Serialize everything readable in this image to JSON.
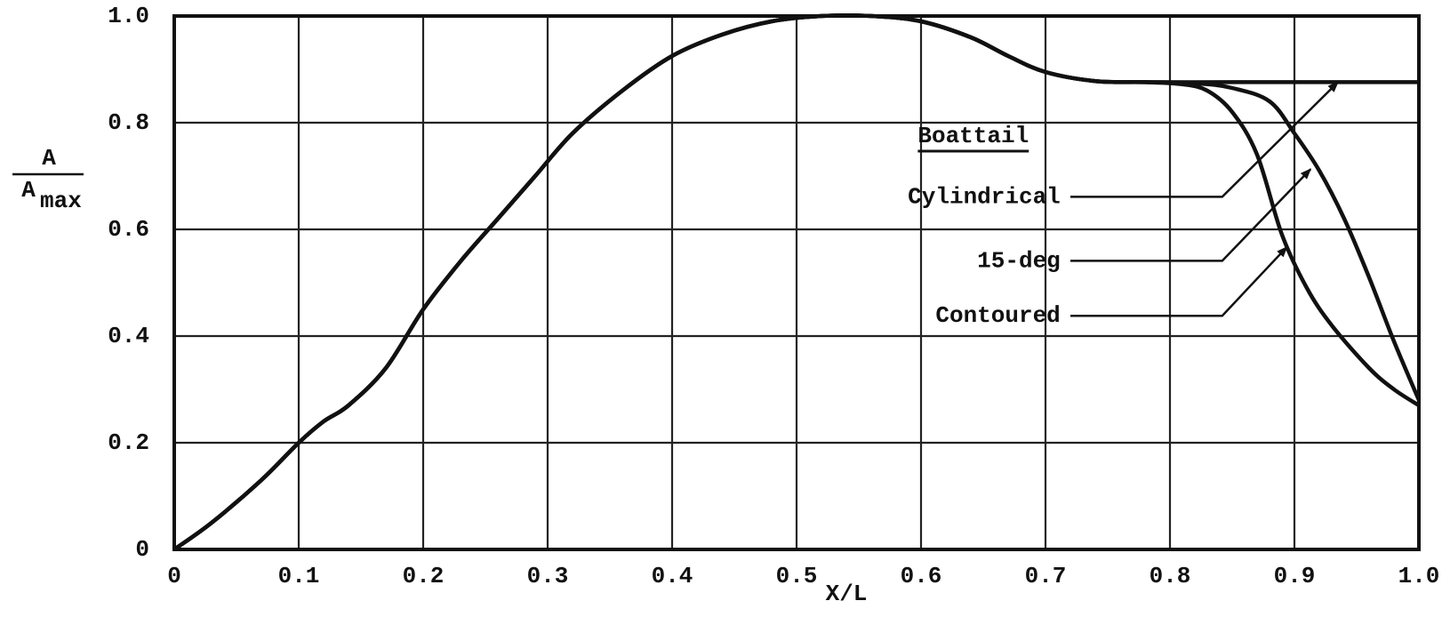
{
  "chart_data": {
    "type": "line",
    "xlabel": "X/L",
    "ylabel": {
      "numerator": "A",
      "denominator": "A",
      "subscript": "max"
    },
    "legend_title": "Boattail",
    "xlim": [
      0,
      1
    ],
    "ylim": [
      0,
      1
    ],
    "xticks": [
      0,
      0.1,
      0.2,
      0.3,
      0.4,
      0.5,
      0.6,
      0.7,
      0.8,
      0.9,
      {
        "value": 1,
        "label": "1.0"
      }
    ],
    "yticks": [
      0,
      0.2,
      0.4,
      0.6,
      0.8,
      {
        "value": 1,
        "label": "1.0"
      }
    ],
    "grid": true,
    "series": [
      {
        "name": "Cylindrical",
        "color": "#111111",
        "x": [
          0,
          0.03,
          0.07,
          0.1,
          0.12,
          0.14,
          0.17,
          0.2,
          0.23,
          0.26,
          0.29,
          0.32,
          0.36,
          0.4,
          0.44,
          0.48,
          0.52,
          0.56,
          0.6,
          0.64,
          0.67,
          0.7,
          0.74,
          0.78,
          0.85,
          0.9,
          0.95,
          1.0
        ],
        "values": [
          0,
          0.05,
          0.13,
          0.2,
          0.24,
          0.27,
          0.34,
          0.45,
          0.54,
          0.62,
          0.7,
          0.78,
          0.86,
          0.925,
          0.965,
          0.99,
          1.0,
          1.0,
          0.99,
          0.96,
          0.925,
          0.895,
          0.878,
          0.876,
          0.876,
          0.876,
          0.876,
          0.876
        ]
      },
      {
        "name": "15-deg",
        "color": "#111111",
        "x": [
          0,
          0.03,
          0.07,
          0.1,
          0.12,
          0.14,
          0.17,
          0.2,
          0.23,
          0.26,
          0.29,
          0.32,
          0.36,
          0.4,
          0.44,
          0.48,
          0.52,
          0.56,
          0.6,
          0.64,
          0.67,
          0.7,
          0.74,
          0.78,
          0.82,
          0.85,
          0.88,
          0.9,
          0.92,
          0.94,
          0.96,
          0.98,
          1.0
        ],
        "values": [
          0,
          0.05,
          0.13,
          0.2,
          0.24,
          0.27,
          0.34,
          0.45,
          0.54,
          0.62,
          0.7,
          0.78,
          0.86,
          0.925,
          0.965,
          0.99,
          1.0,
          1.0,
          0.99,
          0.96,
          0.925,
          0.895,
          0.878,
          0.876,
          0.874,
          0.865,
          0.84,
          0.78,
          0.71,
          0.62,
          0.51,
          0.39,
          0.28
        ]
      },
      {
        "name": "Contoured",
        "color": "#111111",
        "x": [
          0,
          0.03,
          0.07,
          0.1,
          0.12,
          0.14,
          0.17,
          0.2,
          0.23,
          0.26,
          0.29,
          0.32,
          0.36,
          0.4,
          0.44,
          0.48,
          0.52,
          0.56,
          0.6,
          0.64,
          0.67,
          0.7,
          0.74,
          0.78,
          0.81,
          0.83,
          0.85,
          0.87,
          0.89,
          0.91,
          0.93,
          0.96,
          0.98,
          1.0
        ],
        "values": [
          0,
          0.05,
          0.13,
          0.2,
          0.24,
          0.27,
          0.34,
          0.45,
          0.54,
          0.62,
          0.7,
          0.78,
          0.86,
          0.925,
          0.965,
          0.99,
          1.0,
          1.0,
          0.99,
          0.96,
          0.925,
          0.895,
          0.878,
          0.876,
          0.872,
          0.86,
          0.82,
          0.74,
          0.59,
          0.49,
          0.42,
          0.34,
          0.3,
          0.27
        ]
      }
    ]
  }
}
